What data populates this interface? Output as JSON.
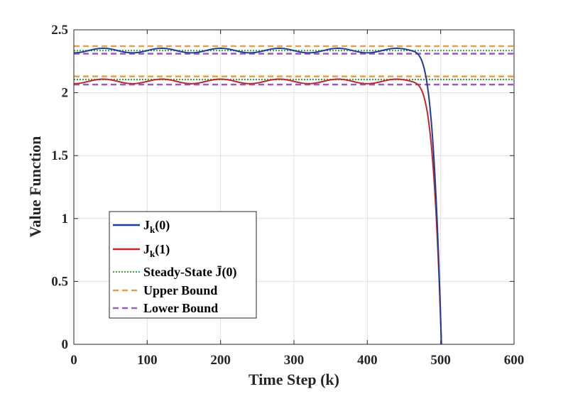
{
  "chart_data": {
    "type": "line",
    "xlabel": "Time Step (k)",
    "ylabel": "Value Function",
    "xlim": [
      0,
      600
    ],
    "ylim": [
      0,
      2.5
    ],
    "xticks": [
      "0",
      "100",
      "200",
      "300",
      "400",
      "500",
      "600"
    ],
    "yticks": [
      "0",
      "0.5",
      "1",
      "1.5",
      "2",
      "2.5"
    ],
    "grid": true,
    "legend_position": "lower-left",
    "series": [
      {
        "name": "Jk(0)",
        "legend_main": "J",
        "legend_sub": "k",
        "legend_tail": "(0)",
        "color": "#1f3c9a",
        "style": "solid",
        "base": 2.335,
        "oscillation_amplitude": 0.018,
        "oscillation_period": 80,
        "drop_start": 455,
        "end_x": 501
      },
      {
        "name": "Jk(1)",
        "legend_main": "J",
        "legend_sub": "k",
        "legend_tail": "(1)",
        "color": "#c0272d",
        "style": "solid",
        "base": 2.09,
        "oscillation_amplitude": 0.018,
        "oscillation_period": 80,
        "drop_start": 455,
        "end_x": 501
      },
      {
        "name": "Steady-State J̄(0)",
        "color": "#3a9a4a",
        "style": "dotted",
        "values_y": [
          2.335,
          2.105
        ]
      },
      {
        "name": "Upper Bound",
        "color": "#e0a050",
        "style": "dashed",
        "values_y": [
          2.37,
          2.13
        ]
      },
      {
        "name": "Lower Bound",
        "color": "#9a5bbf",
        "style": "dashed",
        "values_y": [
          2.31,
          2.065
        ]
      }
    ]
  }
}
